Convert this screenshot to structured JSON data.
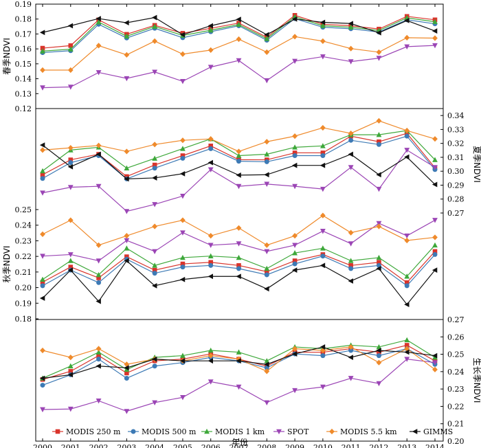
{
  "chart_data": {
    "type": "line",
    "xlabel": "年份",
    "x": [
      2000,
      2001,
      2002,
      2003,
      2004,
      2005,
      2006,
      2007,
      2008,
      2009,
      2010,
      2011,
      2012,
      2013,
      2014
    ],
    "colors": {
      "MODIS 250 m": "#d9342b",
      "MODIS 500 m": "#3d7ab5",
      "MODIS 1 km": "#3ea83a",
      "SPOT": "#9b45b5",
      "MODIS 5.5 km": "#ef8a2b",
      "GIMMS": "#111111"
    },
    "markers": {
      "MODIS 250 m": "square",
      "MODIS 500 m": "circle",
      "MODIS 1 km": "triangle-up",
      "SPOT": "triangle-down",
      "MODIS 5.5 km": "diamond",
      "GIMMS": "triangle-left"
    },
    "legend": {
      "placement": "bottom",
      "entries": [
        "MODIS 250 m",
        "MODIS 500 m",
        "MODIS 1 km",
        "SPOT",
        "MODIS 5.5 km",
        "GIMMS"
      ]
    },
    "panels": [
      {
        "id": "spring",
        "ylabel": "春季NDVI",
        "axis_side": "left",
        "ylim": [
          0.1,
          0.19
        ],
        "yticks": [
          "0.12",
          "0.13",
          "0.14",
          "0.15",
          "0.16",
          "0.17",
          "0.18",
          "0.19"
        ],
        "series": [
          {
            "name": "MODIS 250 m",
            "values": [
              0.1605,
              0.1622,
              0.1795,
              0.1698,
              0.1758,
              0.1705,
              0.1738,
              0.1773,
              0.1678,
              0.1825,
              0.1765,
              0.1755,
              0.1733,
              0.1818,
              0.1795
            ]
          },
          {
            "name": "MODIS 500 m",
            "values": [
              0.1575,
              0.1588,
              0.1765,
              0.1673,
              0.1738,
              0.1675,
              0.1715,
              0.1755,
              0.1658,
              0.1803,
              0.1745,
              0.1735,
              0.1713,
              0.1795,
              0.1768
            ]
          },
          {
            "name": "MODIS 1 km",
            "values": [
              0.1585,
              0.1598,
              0.178,
              0.1685,
              0.175,
              0.169,
              0.1725,
              0.1763,
              0.1668,
              0.1815,
              0.1755,
              0.1745,
              0.1723,
              0.1808,
              0.1782
            ]
          },
          {
            "name": "SPOT",
            "values": [
              0.134,
              0.1345,
              0.1442,
              0.1402,
              0.1445,
              0.1383,
              0.1478,
              0.1522,
              0.1388,
              0.1518,
              0.1548,
              0.1515,
              0.1538,
              0.1615,
              0.1623
            ]
          },
          {
            "name": "MODIS 5.5 km",
            "values": [
              0.1458,
              0.1458,
              0.1622,
              0.156,
              0.1652,
              0.1565,
              0.1592,
              0.1665,
              0.1578,
              0.1682,
              0.1652,
              0.1602,
              0.1578,
              0.1675,
              0.1672
            ]
          },
          {
            "name": "GIMMS",
            "values": [
              0.171,
              0.1755,
              0.1803,
              0.1775,
              0.181,
              0.1695,
              0.1755,
              0.1798,
              0.1695,
              0.18,
              0.1778,
              0.177,
              0.1708,
              0.179,
              0.172
            ]
          }
        ]
      },
      {
        "id": "summer",
        "ylabel": "夏季NDVI",
        "axis_side": "right",
        "ylim": [
          0.26,
          0.35
        ],
        "yticks": [
          "0.27",
          "0.28",
          "0.29",
          "0.30",
          "0.31",
          "0.32",
          "0.33",
          "0.34"
        ],
        "series": [
          {
            "name": "MODIS 250 m",
            "values": [
              0.2975,
              0.3082,
              0.3122,
              0.2962,
              0.3045,
              0.3112,
              0.3182,
              0.3083,
              0.3082,
              0.3132,
              0.3132,
              0.3252,
              0.3212,
              0.3272,
              0.3025
            ]
          },
          {
            "name": "MODIS 500 m",
            "values": [
              0.2948,
              0.3062,
              0.3112,
              0.2945,
              0.3022,
              0.3093,
              0.3162,
              0.3072,
              0.3068,
              0.3112,
              0.3112,
              0.3222,
              0.3192,
              0.3252,
              0.3012
            ]
          },
          {
            "name": "MODIS 1 km",
            "values": [
              0.3002,
              0.3152,
              0.3172,
              0.3022,
              0.3092,
              0.3162,
              0.3232,
              0.3112,
              0.3122,
              0.3172,
              0.3182,
              0.3262,
              0.3262,
              0.3292,
              0.3082
            ]
          },
          {
            "name": "SPOT",
            "values": [
              0.2845,
              0.2885,
              0.2892,
              0.2712,
              0.2762,
              0.2822,
              0.3012,
              0.2892,
              0.2908,
              0.2892,
              0.2872,
              0.3028,
              0.2872,
              0.3152,
              0.3028
            ]
          },
          {
            "name": "MODIS 5.5 km",
            "values": [
              0.3152,
              0.3168,
              0.3185,
              0.3142,
              0.3192,
              0.3222,
              0.3232,
              0.3142,
              0.3212,
              0.3252,
              0.3312,
              0.3272,
              0.3362,
              0.3292,
              0.3232
            ]
          },
          {
            "name": "GIMMS",
            "values": [
              0.3188,
              0.3032,
              0.3122,
              0.2945,
              0.2952,
              0.2982,
              0.3062,
              0.2972,
              0.2975,
              0.3042,
              0.3042,
              0.3122,
              0.2975,
              0.3102,
              0.2905
            ]
          }
        ]
      },
      {
        "id": "autumn",
        "ylabel": "秋季NDVI",
        "axis_side": "left",
        "ylim": [
          0.17,
          0.255
        ],
        "yticks": [
          "0.18",
          "0.19",
          "0.20",
          "0.21",
          "0.22",
          "0.23",
          "0.24",
          "0.25"
        ],
        "series": [
          {
            "name": "MODIS 250 m",
            "values": [
              0.2035,
              0.2132,
              0.2062,
              0.2198,
              0.2112,
              0.2152,
              0.2162,
              0.2142,
              0.2102,
              0.2172,
              0.2212,
              0.2142,
              0.2162,
              0.2032,
              0.2232
            ]
          },
          {
            "name": "MODIS 500 m",
            "values": [
              0.2012,
              0.2112,
              0.2032,
              0.2182,
              0.2092,
              0.2132,
              0.2142,
              0.2122,
              0.2082,
              0.2152,
              0.2202,
              0.2122,
              0.2142,
              0.2012,
              0.2212
            ]
          },
          {
            "name": "MODIS 1 km",
            "values": [
              0.2052,
              0.2172,
              0.2082,
              0.2252,
              0.2142,
              0.2192,
              0.2202,
              0.2192,
              0.2122,
              0.2222,
              0.2252,
              0.2172,
              0.2192,
              0.2072,
              0.2272
            ]
          },
          {
            "name": "SPOT",
            "values": [
              0.2202,
              0.2212,
              0.2172,
              0.2302,
              0.2232,
              0.2352,
              0.2272,
              0.2282,
              0.2232,
              0.2272,
              0.2362,
              0.2282,
              0.2412,
              0.2332,
              0.2432
            ]
          },
          {
            "name": "MODIS 5.5 km",
            "values": [
              0.2342,
              0.2432,
              0.2272,
              0.2332,
              0.2392,
              0.2432,
              0.2332,
              0.2382,
              0.2272,
              0.2332,
              0.2462,
              0.2352,
              0.2392,
              0.2302,
              0.2322
            ]
          },
          {
            "name": "GIMMS",
            "values": [
              0.1932,
              0.2112,
              0.1912,
              0.2172,
              0.2012,
              0.2052,
              0.2072,
              0.2072,
              0.1992,
              0.2112,
              0.2142,
              0.2042,
              0.2122,
              0.1892,
              0.2112
            ]
          }
        ]
      },
      {
        "id": "growing",
        "ylabel": "生长季NDVI",
        "axis_side": "right",
        "ylim": [
          0.2,
          0.27
        ],
        "yticks": [
          "0.20",
          "0.21",
          "0.22",
          "0.23",
          "0.24",
          "0.25",
          "0.26",
          "0.27"
        ],
        "series": [
          {
            "name": "MODIS 250 m",
            "values": [
              0.2355,
              0.2402,
              0.2492,
              0.2392,
              0.2462,
              0.2472,
              0.2502,
              0.2472,
              0.2432,
              0.2512,
              0.2512,
              0.2532,
              0.2512,
              0.2552,
              0.2462
            ]
          },
          {
            "name": "MODIS 500 m",
            "values": [
              0.2322,
              0.2382,
              0.2472,
              0.2362,
              0.2432,
              0.2452,
              0.2482,
              0.2462,
              0.2422,
              0.2502,
              0.2492,
              0.2522,
              0.2492,
              0.2532,
              0.2442
            ]
          },
          {
            "name": "MODIS 1 km",
            "values": [
              0.2362,
              0.2432,
              0.2512,
              0.2412,
              0.2482,
              0.2492,
              0.2522,
              0.2512,
              0.2462,
              0.2542,
              0.2532,
              0.2552,
              0.2542,
              0.2582,
              0.2482
            ]
          },
          {
            "name": "SPOT",
            "values": [
              0.2182,
              0.2185,
              0.2232,
              0.2172,
              0.2222,
              0.2252,
              0.2342,
              0.2312,
              0.2222,
              0.2292,
              0.2312,
              0.2362,
              0.2332,
              0.2472,
              0.2452
            ]
          },
          {
            "name": "MODIS 5.5 km",
            "values": [
              0.2522,
              0.2482,
              0.2532,
              0.2442,
              0.2472,
              0.2462,
              0.2492,
              0.2472,
              0.2402,
              0.2532,
              0.2522,
              0.2542,
              0.2452,
              0.2532,
              0.2412
            ]
          },
          {
            "name": "GIMMS",
            "values": [
              0.2362,
              0.2382,
              0.2432,
              0.2422,
              0.2472,
              0.2462,
              0.2462,
              0.2462,
              0.2442,
              0.2502,
              0.2542,
              0.2482,
              0.2522,
              0.2512,
              0.2492
            ]
          }
        ]
      }
    ]
  }
}
